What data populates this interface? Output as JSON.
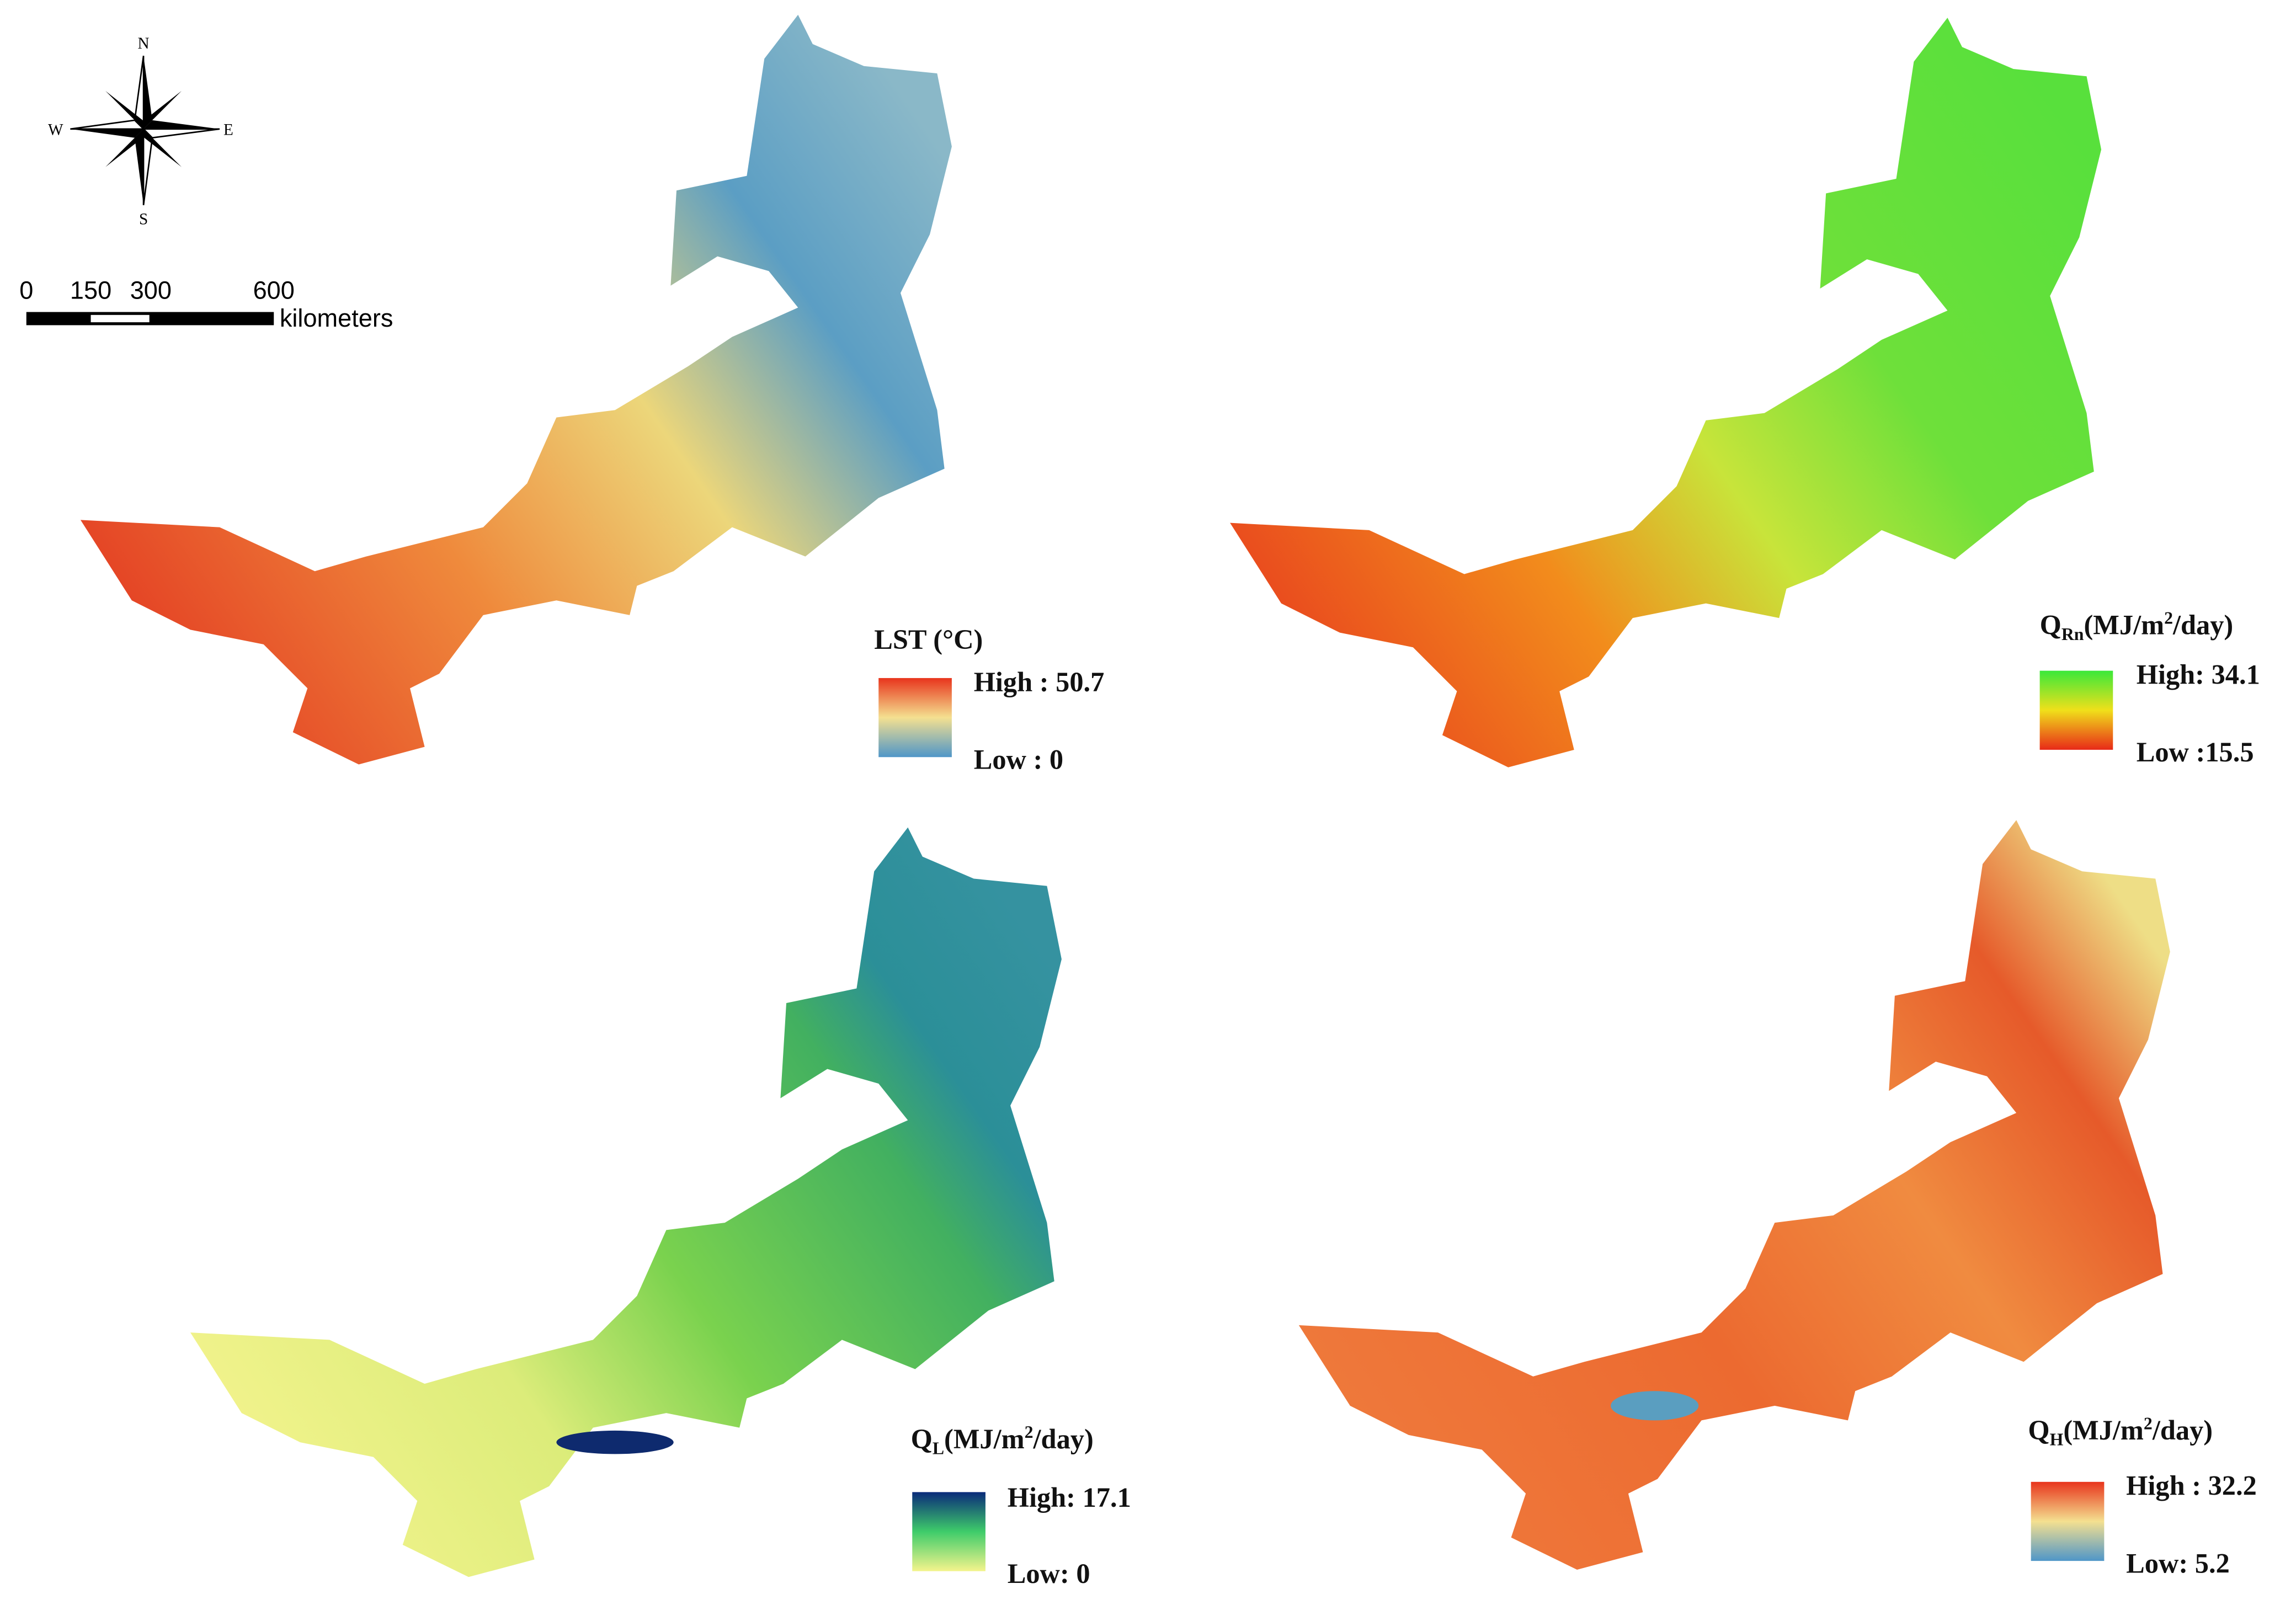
{
  "compass": {
    "north": "N",
    "south": "S",
    "west": "W",
    "east": "E"
  },
  "scale_bar": {
    "ticks": [
      "0",
      "150",
      "300",
      "600"
    ],
    "unit": "kilometers"
  },
  "panels": [
    {
      "title": "LST (°C)",
      "high": "High : 50.7",
      "low": "Low : 0"
    },
    {
      "symbol": "Q",
      "subscript": "Rn",
      "unit": "(MJ/m",
      "superscript": "2",
      "unit_end": "/day)",
      "high": "High: 34.1",
      "low": "Low :15.5"
    },
    {
      "symbol": "Q",
      "subscript": "L",
      "unit": "(MJ/m",
      "superscript": "2",
      "unit_end": "/day)",
      "high": "High: 17.1",
      "low": "Low: 0"
    },
    {
      "symbol": "Q",
      "subscript": "H",
      "unit": "(MJ/m",
      "superscript": "2",
      "unit_end": "/day)",
      "high": "High : 32.2",
      "low": "Low: 5.2"
    }
  ]
}
